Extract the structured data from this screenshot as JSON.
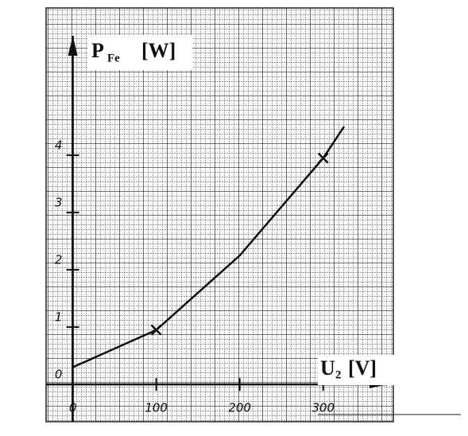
{
  "chart_data": {
    "type": "line",
    "y_label": "P",
    "y_label_sub": "Fe",
    "y_label_unit": "[W]",
    "x_label": "U",
    "x_label_sub": "2",
    "x_label_unit": "[V]",
    "series": [
      {
        "color": "#111111",
        "x": [
          0,
          100,
          200,
          300,
          325
        ],
        "values": [
          0.3,
          0.95,
          2.25,
          3.95,
          4.5
        ]
      }
    ],
    "points": {
      "x": [
        100,
        300
      ],
      "values": [
        0.95,
        3.95
      ]
    },
    "xlim": [
      -32,
      384
    ],
    "ylim": [
      -0.65,
      6.57
    ],
    "xticks": [
      0,
      100,
      200,
      300
    ],
    "yticks": [
      0,
      1,
      2,
      3,
      4
    ]
  }
}
